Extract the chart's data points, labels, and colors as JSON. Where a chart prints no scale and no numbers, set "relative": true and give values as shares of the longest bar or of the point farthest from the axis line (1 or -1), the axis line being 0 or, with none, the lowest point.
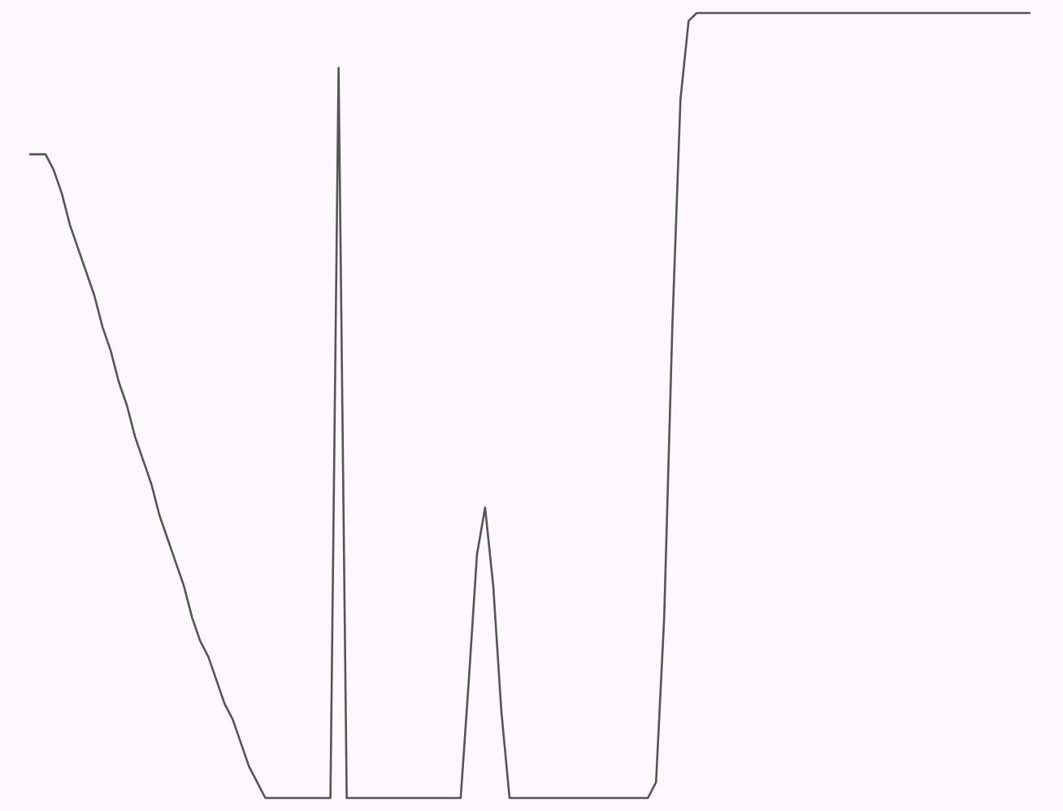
{
  "chart_data": {
    "type": "line",
    "relative": true,
    "categories": [
      null,
      null,
      null,
      null,
      null,
      null,
      null,
      null,
      null,
      null,
      null,
      null,
      null,
      null,
      null,
      null,
      null,
      null,
      null,
      null,
      null,
      null,
      null,
      null,
      null,
      null,
      null,
      null,
      null,
      null,
      null,
      null,
      null,
      null,
      null,
      null,
      null,
      null,
      null,
      null,
      null,
      null,
      null,
      null,
      null,
      null,
      null,
      null,
      null,
      null,
      null,
      null,
      null,
      null,
      null,
      null,
      null,
      null,
      null,
      null,
      null,
      null,
      null,
      null,
      null,
      null,
      null,
      null,
      null,
      null,
      null,
      null,
      null,
      null,
      null,
      null,
      null,
      null,
      null,
      null,
      null,
      null,
      null,
      null,
      null,
      null,
      null,
      null,
      null,
      null,
      null,
      null,
      null,
      null,
      null,
      null,
      null,
      null,
      null,
      null,
      null,
      null,
      null,
      null,
      null,
      null,
      null,
      null,
      null,
      null,
      null,
      null,
      null,
      null,
      null,
      null,
      null,
      null,
      null,
      null,
      null,
      null,
      null,
      null
    ],
    "series": [
      {
        "color": "#555555",
        "values": [
          0.82,
          0.82,
          0.82,
          0.8,
          0.77,
          0.73,
          0.7,
          0.67,
          0.64,
          0.6,
          0.57,
          0.53,
          0.5,
          0.46,
          0.43,
          0.4,
          0.36,
          0.33,
          0.3,
          0.27,
          0.23,
          0.2,
          0.18,
          0.15,
          0.12,
          0.1,
          0.07,
          0.04,
          0.02,
          0,
          0,
          0,
          0,
          0,
          0,
          0,
          0,
          0,
          0.93,
          0,
          0,
          0,
          0,
          0,
          0,
          0,
          0,
          0,
          0,
          0,
          0,
          0,
          0,
          0,
          0.15,
          0.31,
          0.37,
          0.27,
          0.11,
          0,
          0,
          0,
          0,
          0,
          0,
          0,
          0,
          0,
          0,
          0,
          0,
          0,
          0,
          0,
          0,
          0,
          0,
          0.02,
          0.23,
          0.6,
          0.89,
          0.99,
          1,
          1,
          1,
          1,
          1,
          1,
          1,
          1,
          1,
          1,
          1,
          1,
          1,
          1,
          1,
          1,
          1,
          1,
          1,
          1,
          1,
          1,
          1,
          1,
          1,
          1,
          1,
          1,
          1,
          1,
          1,
          1,
          1,
          1,
          1,
          1,
          1,
          1,
          1,
          1,
          1,
          1
        ]
      }
    ]
  }
}
